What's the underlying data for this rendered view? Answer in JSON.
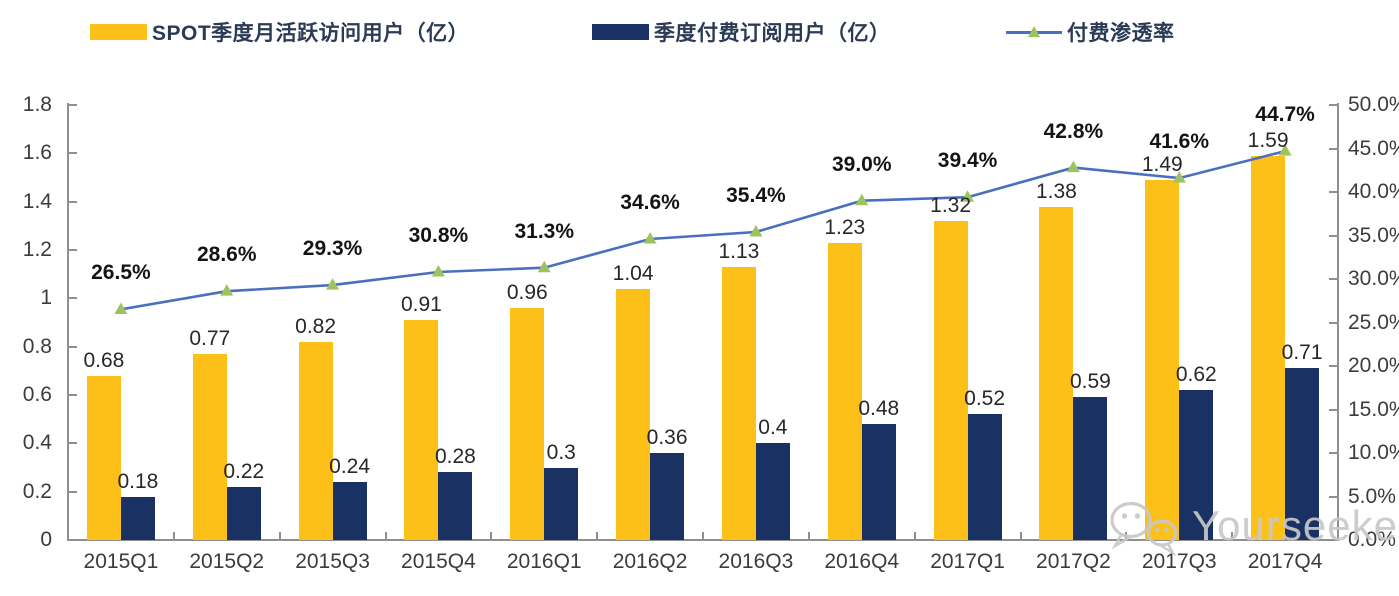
{
  "legend": [
    {
      "label": "SPOT季度月活跃访问用户（亿）",
      "swatch_color": "#FCC019",
      "type": "bar"
    },
    {
      "label": "季度付费订阅用户（亿）",
      "swatch_color": "#1A3263",
      "type": "bar"
    },
    {
      "label": "付费渗透率",
      "line_color": "#4a6fbe",
      "marker_color": "#9dc360",
      "marker": "triangle",
      "type": "line"
    }
  ],
  "chart_data": {
    "type": "bar",
    "subtype": "grouped-bars-with-line",
    "categories": [
      "2015Q1",
      "2015Q2",
      "2015Q3",
      "2015Q4",
      "2016Q1",
      "2016Q2",
      "2016Q3",
      "2016Q4",
      "2017Q1",
      "2017Q2",
      "2017Q3",
      "2017Q4"
    ],
    "series": [
      {
        "name": "SPOT季度月活跃访问用户（亿）",
        "type": "bar",
        "axis": "left",
        "color": "#FCC019",
        "values": [
          0.68,
          0.77,
          0.82,
          0.91,
          0.96,
          1.04,
          1.13,
          1.23,
          1.32,
          1.38,
          1.49,
          1.59
        ],
        "labels": [
          "0.68",
          "0.77",
          "0.82",
          "0.91",
          "0.96",
          "1.04",
          "1.13",
          "1.23",
          "1.32",
          "1.38",
          "1.49",
          "1.59"
        ]
      },
      {
        "name": "季度付费订阅用户（亿）",
        "type": "bar",
        "axis": "left",
        "color": "#1A3263",
        "values": [
          0.18,
          0.22,
          0.24,
          0.28,
          0.3,
          0.36,
          0.4,
          0.48,
          0.52,
          0.59,
          0.62,
          0.71
        ],
        "labels": [
          "0.18",
          "0.22",
          "0.24",
          "0.28",
          "0.3",
          "0.36",
          "0.4",
          "0.48",
          "0.52",
          "0.59",
          "0.62",
          "0.71"
        ]
      },
      {
        "name": "付费渗透率",
        "type": "line",
        "axis": "right",
        "color": "#4a6fbe",
        "marker": "triangle",
        "marker_color": "#9dc360",
        "values": [
          26.5,
          28.6,
          29.3,
          30.8,
          31.3,
          34.6,
          35.4,
          39.0,
          39.4,
          42.8,
          41.6,
          44.7
        ],
        "labels": [
          "26.5%",
          "28.6%",
          "29.3%",
          "30.8%",
          "31.3%",
          "34.6%",
          "35.4%",
          "39.0%",
          "39.4%",
          "42.8%",
          "41.6%",
          "44.7%"
        ]
      }
    ],
    "left_axis": {
      "min": 0,
      "max": 1.8,
      "step": 0.2,
      "ticks": [
        "0",
        "0.2",
        "0.4",
        "0.6",
        "0.8",
        "1",
        "1.2",
        "1.4",
        "1.6",
        "1.8"
      ]
    },
    "right_axis": {
      "min": 0,
      "max": 50,
      "step": 5,
      "ticks": [
        "0.0%",
        "5.0%",
        "10.0%",
        "15.0%",
        "20.0%",
        "25.0%",
        "30.0%",
        "35.0%",
        "40.0%",
        "45.0%",
        "50.0%"
      ]
    },
    "grid": false,
    "legend_position": "top",
    "title": ""
  },
  "watermark": {
    "text": "Yourseeker",
    "icon": "wechat-icon",
    "color": "#c8c8c8"
  }
}
